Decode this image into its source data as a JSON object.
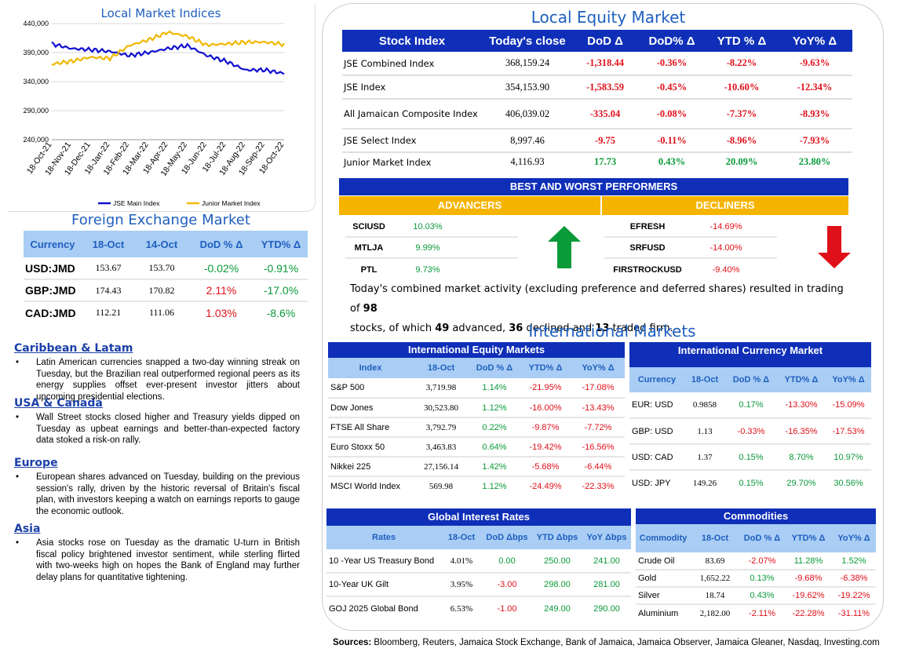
{
  "index_chart": {
    "title": "Local Market Indices",
    "y_ticks": [
      "440,000",
      "390,000",
      "340,000",
      "290,000",
      "240,000"
    ],
    "x_ticks": [
      "18-Oct-21",
      "18-Nov-21",
      "18-Dec-21",
      "18-Jan-22",
      "18-Feb-22",
      "18-Mar-22",
      "18-Apr-22",
      "18-May-22",
      "18-Jun-22",
      "18-Jul-22",
      "18-Aug-22",
      "18-Sep-22",
      "18-Oct-22"
    ],
    "legend": [
      "JSE Main Index",
      "Junior Market Index"
    ],
    "colors": {
      "main": "#1010d0",
      "junior": "#f0b800"
    }
  },
  "chart_data": {
    "type": "line",
    "x": [
      "18-Oct-21",
      "18-Nov-21",
      "18-Dec-21",
      "18-Jan-22",
      "18-Feb-22",
      "18-Mar-22",
      "18-Apr-22",
      "18-May-22",
      "18-Jun-22",
      "18-Jul-22",
      "18-Aug-22",
      "18-Sep-22",
      "18-Oct-22"
    ],
    "series": [
      {
        "name": "JSE Main Index",
        "values": [
          405000,
          397000,
          395000,
          392000,
          385000,
          390000,
          397000,
          402000,
          385000,
          375000,
          360000,
          360000,
          354000
        ]
      },
      {
        "name": "Junior Market Index",
        "values": [
          370000,
          375000,
          382000,
          380000,
          402000,
          412000,
          425000,
          418000,
          403000,
          405000,
          408000,
          408000,
          404000
        ]
      }
    ],
    "ylim": [
      240000,
      440000
    ],
    "grid": true,
    "legend_position": "bottom"
  },
  "fx": {
    "title": "Foreign Exchange Market",
    "headers": [
      "Currency",
      "18-Oct",
      "14-Oct",
      "DoD % Δ",
      "YTD% Δ"
    ],
    "rows": [
      {
        "c": "USD:JMD",
        "a": "153.67",
        "b": "153.70",
        "d": "-0.02%",
        "y": "-0.91%",
        "dc": "up",
        "yc": "up"
      },
      {
        "c": "GBP:JMD",
        "a": "174.43",
        "b": "170.82",
        "d": "2.11%",
        "y": "-17.0%",
        "dc": "down",
        "yc": "up"
      },
      {
        "c": "CAD:JMD",
        "a": "112.21",
        "b": "111.06",
        "d": "1.03%",
        "y": "-8.6%",
        "dc": "down",
        "yc": "up"
      }
    ]
  },
  "news": [
    {
      "heading": "Caribbean & Latam",
      "text": "Latin American currencies snapped a two-day winning streak on Tuesday, but the Brazilian real outperformed regional peers as its energy supplies offset ever-present investor jitters about upcoming presidential elections."
    },
    {
      "heading": "USA & Canada",
      "text": "Wall Street stocks closed higher and Treasury yields dipped on Tuesday as upbeat earnings and better-than-expected factory data stoked a risk-on rally."
    },
    {
      "heading": "Europe",
      "text": "European shares advanced on Tuesday, building on the previous session's rally, driven by the historic reversal of Britain's fiscal plan, with investors keeping a watch on earnings reports to gauge the economic outlook."
    },
    {
      "heading": "Asia",
      "text": "Asia stocks rose on Tuesday as the dramatic U-turn in British fiscal policy brightened investor sentiment, while sterling flirted with two-weeks high on hopes the Bank of England may further delay plans for quantitative tightening."
    }
  ],
  "equity": {
    "title": "Local Equity Market",
    "headers": [
      "Stock Index",
      "Today's close",
      "DoD  Δ",
      "DoD% Δ",
      "YTD % Δ",
      "YoY% Δ"
    ],
    "rows": [
      {
        "n": "JSE Combined Index",
        "c": "368,159.24",
        "d": "-1,318.44",
        "dp": "-0.36%",
        "y": "-8.22%",
        "yy": "-9.63%",
        "cls": [
          "down",
          "down",
          "down",
          "down"
        ]
      },
      {
        "n": "JSE Index",
        "c": "354,153.90",
        "d": "-1,583.59",
        "dp": "-0.45%",
        "y": "-10.60%",
        "yy": "-12.34%",
        "cls": [
          "down",
          "down",
          "down",
          "down"
        ]
      },
      {
        "n": "All Jamaican Composite Index",
        "c": "406,039.02",
        "d": "-335.04",
        "dp": "-0.08%",
        "y": "-7.37%",
        "yy": "-8.93%",
        "cls": [
          "down",
          "down",
          "down",
          "down"
        ]
      },
      {
        "n": "JSE Select Index",
        "c": "8,997.46",
        "d": "-9.75",
        "dp": "-0.11%",
        "y": "-8.96%",
        "yy": "-7.93%",
        "cls": [
          "down",
          "down",
          "down",
          "down"
        ]
      },
      {
        "n": "Junior Market Index",
        "c": "4,116.93",
        "d": "17.73",
        "dp": "0.43%",
        "y": "20.09%",
        "yy": "23.80%",
        "cls": [
          "up",
          "up",
          "up",
          "up"
        ]
      }
    ]
  },
  "performers": {
    "title": "BEST AND WORST PERFORMERS",
    "advancers_label": "ADVANCERS",
    "decliners_label": "DECLINERS",
    "advancers": [
      {
        "s": "SCIUSD",
        "v": "10.03%"
      },
      {
        "s": "MTLJA",
        "v": "9.99%"
      },
      {
        "s": "PTL",
        "v": "9.73%"
      }
    ],
    "decliners": [
      {
        "s": "EFRESH",
        "v": "-14.69%"
      },
      {
        "s": "SRFUSD",
        "v": "-14.00%"
      },
      {
        "s": "FIRSTROCKUSD",
        "v": "-9.40%"
      }
    ]
  },
  "summary": {
    "p1": "Today's combined market activity (excluding preference and deferred shares) resulted in trading of ",
    "total": "98",
    "p2": " stocks, of which ",
    "adv": "49",
    "p3": " advanced, ",
    "dec": "36",
    "p4": " declined and ",
    "firm": "13",
    "p5": " traded firm."
  },
  "intl": {
    "title": "International Markets",
    "equity_title": "International Equity Markets",
    "equity_headers": [
      "Index",
      "18-Oct",
      "DoD % Δ",
      "YTD% Δ",
      "YoY% Δ"
    ],
    "equity_rows": [
      {
        "n": "S&P 500",
        "v": "3,719.98",
        "d": "1.14%",
        "y": "-21.95%",
        "yy": "-17.08%",
        "cls": [
          "up",
          "down",
          "down"
        ]
      },
      {
        "n": "Dow Jones",
        "v": "30,523.80",
        "d": "1.12%",
        "y": "-16.00%",
        "yy": "-13.43%",
        "cls": [
          "up",
          "down",
          "down"
        ]
      },
      {
        "n": "FTSE All Share",
        "v": "3,792.79",
        "d": "0.22%",
        "y": "-9.87%",
        "yy": "-7.72%",
        "cls": [
          "up",
          "down",
          "down"
        ]
      },
      {
        "n": "Euro Stoxx 50",
        "v": "3,463.83",
        "d": "0.64%",
        "y": "-19.42%",
        "yy": "-16.56%",
        "cls": [
          "up",
          "down",
          "down"
        ]
      },
      {
        "n": "Nikkei 225",
        "v": "27,156.14",
        "d": "1.42%",
        "y": "-5.68%",
        "yy": "-6.44%",
        "cls": [
          "up",
          "down",
          "down"
        ]
      },
      {
        "n": "MSCI World Index",
        "v": "569.98",
        "d": "1.12%",
        "y": "-24.49%",
        "yy": "-22.33%",
        "cls": [
          "up",
          "down",
          "down"
        ]
      }
    ],
    "currency_title": "International Currency Market",
    "currency_headers": [
      "Currency",
      "18-Oct",
      "DoD % Δ",
      "YTD% Δ",
      "YoY% Δ"
    ],
    "currency_rows": [
      {
        "n": "EUR: USD",
        "v": "0.9858",
        "d": "0.17%",
        "y": "-13.30%",
        "yy": "-15.09%",
        "cls": [
          "up",
          "down",
          "down"
        ]
      },
      {
        "n": "GBP: USD",
        "v": "1.13",
        "d": "-0.33%",
        "y": "-16.35%",
        "yy": "-17.53%",
        "cls": [
          "down",
          "down",
          "down"
        ]
      },
      {
        "n": "USD: CAD",
        "v": "1.37",
        "d": "0.15%",
        "y": "8.70%",
        "yy": "10.97%",
        "cls": [
          "up",
          "up",
          "up"
        ]
      },
      {
        "n": "USD: JPY",
        "v": "149.26",
        "d": "0.15%",
        "y": "29.70%",
        "yy": "30.56%",
        "cls": [
          "up",
          "up",
          "up"
        ]
      }
    ],
    "rates_title": "Global Interest Rates",
    "rates_headers": [
      "Rates",
      "18-Oct",
      "DoD Δbps",
      "YTD Δbps",
      "YoY Δbps"
    ],
    "rates_rows": [
      {
        "n": "10 -Year US Treasury Bond",
        "v": "4.01%",
        "d": "0.00",
        "y": "250.00",
        "yy": "241.00",
        "cls": [
          "up",
          "up",
          "up"
        ]
      },
      {
        "n": "10-Year UK Gilt",
        "v": "3.95%",
        "d": "-3.00",
        "y": "298.00",
        "yy": "281.00",
        "cls": [
          "down",
          "up",
          "up"
        ]
      },
      {
        "n": "GOJ 2025 Global Bond",
        "v": "6.53%",
        "d": "-1.00",
        "y": "249.00",
        "yy": "290.00",
        "cls": [
          "down",
          "up",
          "up"
        ]
      }
    ],
    "comm_title": "Commodities",
    "comm_headers": [
      "Commodity",
      "18-Oct",
      "DoD % Δ",
      "YTD% Δ",
      "YoY% Δ"
    ],
    "comm_rows": [
      {
        "n": "Crude Oil",
        "v": "83.69",
        "d": "-2.07%",
        "y": "11.28%",
        "yy": "1.52%",
        "cls": [
          "down",
          "up",
          "up"
        ]
      },
      {
        "n": "Gold",
        "v": "1,652.22",
        "d": "0.13%",
        "y": "-9.68%",
        "yy": "-6.38%",
        "cls": [
          "up",
          "down",
          "down"
        ]
      },
      {
        "n": "Silver",
        "v": "18.74",
        "d": "0.43%",
        "y": "-19.62%",
        "yy": "-19.22%",
        "cls": [
          "up",
          "down",
          "down"
        ]
      },
      {
        "n": "Aluminium",
        "v": "2,182.00",
        "d": "-2.11%",
        "y": "-22.28%",
        "yy": "-31.11%",
        "cls": [
          "down",
          "down",
          "down"
        ]
      }
    ]
  },
  "sources": {
    "label": "Sources:",
    "text": " Bloomberg, Reuters, Jamaica Stock Exchange, Bank of Jamaica, Jamaica Observer, Jamaica Gleaner, Nasdaq, Investing.com"
  }
}
